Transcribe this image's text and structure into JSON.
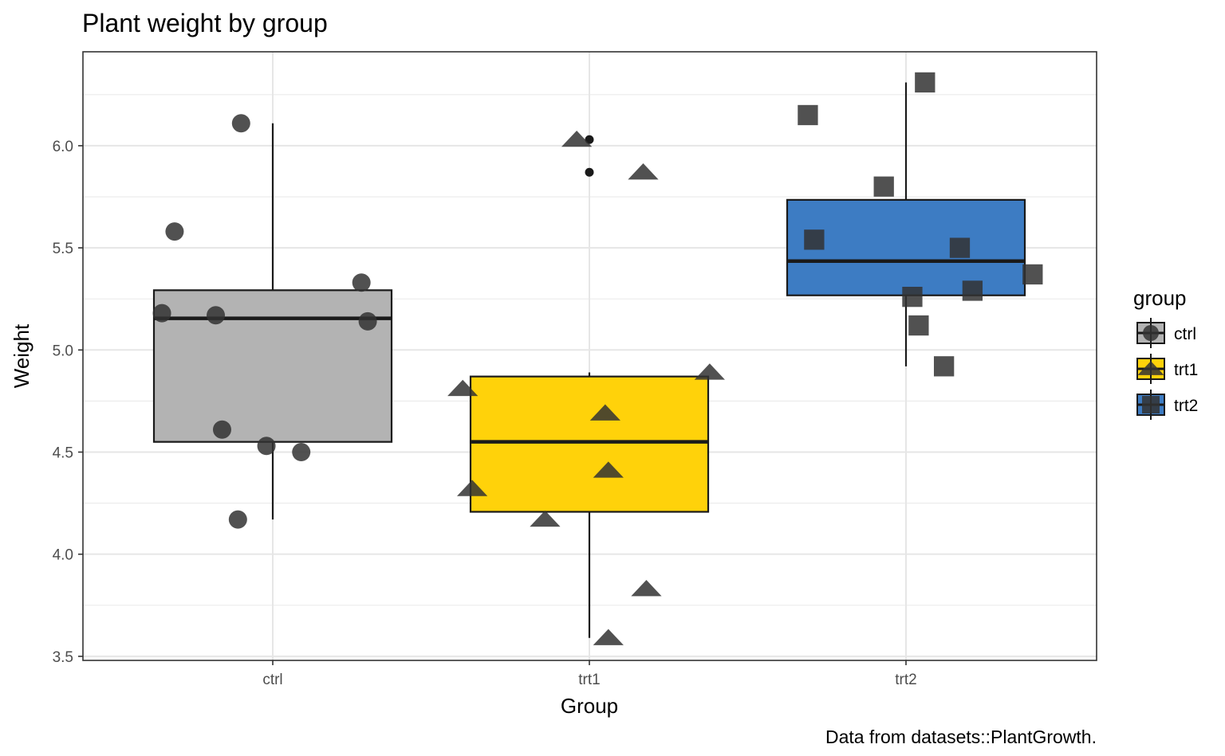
{
  "chart_data": {
    "type": "box",
    "title": "Plant weight by group",
    "xlabel": "Group",
    "ylabel": "Weight",
    "caption": "Data from datasets::PlantGrowth.",
    "categories": [
      "ctrl",
      "trt1",
      "trt2"
    ],
    "ylim": [
      3.48,
      6.46
    ],
    "yticks": [
      3.5,
      4.0,
      4.5,
      5.0,
      5.5,
      6.0
    ],
    "ytick_labels": [
      "3.5",
      "4.0",
      "4.5",
      "5.0",
      "5.5",
      "6.0"
    ],
    "grid": true,
    "legend": {
      "title": "group",
      "position": "right",
      "entries": [
        {
          "label": "ctrl",
          "fill": "#b3b3b3",
          "shape": "circle"
        },
        {
          "label": "trt1",
          "fill": "#ffd20a",
          "shape": "triangle"
        },
        {
          "label": "trt2",
          "fill": "#3d7cc3",
          "shape": "square"
        }
      ]
    },
    "boxes": [
      {
        "category": "ctrl",
        "fill": "#b3b3b3",
        "lower_whisker": 4.17,
        "q1": 4.55,
        "median": 5.155,
        "q3": 5.2925,
        "upper_whisker": 6.11,
        "outliers": []
      },
      {
        "category": "trt1",
        "fill": "#ffd20a",
        "lower_whisker": 3.59,
        "q1": 4.2075,
        "median": 4.55,
        "q3": 4.87,
        "upper_whisker": 4.89,
        "outliers": [
          5.87,
          6.03
        ]
      },
      {
        "category": "trt2",
        "fill": "#3d7cc3",
        "lower_whisker": 4.92,
        "q1": 5.2675,
        "median": 5.435,
        "q3": 5.735,
        "upper_whisker": 6.31,
        "outliers": []
      }
    ],
    "points": [
      {
        "group": "ctrl",
        "x_offset": -0.1,
        "y": 6.11
      },
      {
        "group": "ctrl",
        "x_offset": -0.31,
        "y": 5.58
      },
      {
        "group": "ctrl",
        "x_offset": 0.28,
        "y": 5.33
      },
      {
        "group": "ctrl",
        "x_offset": -0.35,
        "y": 5.18
      },
      {
        "group": "ctrl",
        "x_offset": -0.18,
        "y": 5.17
      },
      {
        "group": "ctrl",
        "x_offset": 0.3,
        "y": 5.14
      },
      {
        "group": "ctrl",
        "x_offset": -0.16,
        "y": 4.61
      },
      {
        "group": "ctrl",
        "x_offset": -0.02,
        "y": 4.53
      },
      {
        "group": "ctrl",
        "x_offset": 0.09,
        "y": 4.5
      },
      {
        "group": "ctrl",
        "x_offset": -0.11,
        "y": 4.17
      },
      {
        "group": "trt1",
        "x_offset": -0.04,
        "y": 6.03
      },
      {
        "group": "trt1",
        "x_offset": 0.17,
        "y": 5.87
      },
      {
        "group": "trt1",
        "x_offset": 0.38,
        "y": 4.89
      },
      {
        "group": "trt1",
        "x_offset": -0.4,
        "y": 4.81
      },
      {
        "group": "trt1",
        "x_offset": 0.05,
        "y": 4.69
      },
      {
        "group": "trt1",
        "x_offset": 0.06,
        "y": 4.41
      },
      {
        "group": "trt1",
        "x_offset": -0.37,
        "y": 4.32
      },
      {
        "group": "trt1",
        "x_offset": -0.14,
        "y": 4.17
      },
      {
        "group": "trt1",
        "x_offset": 0.18,
        "y": 3.83
      },
      {
        "group": "trt1",
        "x_offset": 0.06,
        "y": 3.59
      },
      {
        "group": "trt2",
        "x_offset": 0.06,
        "y": 6.31
      },
      {
        "group": "trt2",
        "x_offset": -0.31,
        "y": 6.15
      },
      {
        "group": "trt2",
        "x_offset": -0.07,
        "y": 5.8
      },
      {
        "group": "trt2",
        "x_offset": -0.29,
        "y": 5.54
      },
      {
        "group": "trt2",
        "x_offset": 0.17,
        "y": 5.5
      },
      {
        "group": "trt2",
        "x_offset": 0.4,
        "y": 5.37
      },
      {
        "group": "trt2",
        "x_offset": 0.21,
        "y": 5.29
      },
      {
        "group": "trt2",
        "x_offset": 0.02,
        "y": 5.26
      },
      {
        "group": "trt2",
        "x_offset": 0.04,
        "y": 5.12
      },
      {
        "group": "trt2",
        "x_offset": 0.12,
        "y": 4.92
      }
    ],
    "point_color": "#333333",
    "point_opacity": 0.85,
    "outlier_color": "#1a1a1a"
  }
}
